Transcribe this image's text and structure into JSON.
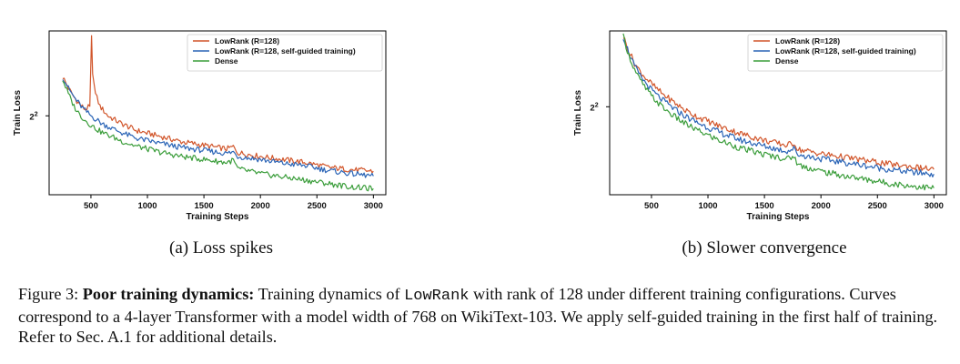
{
  "colors": {
    "lowrank": "#d1552a",
    "lowrank_self_guided": "#2a64b6",
    "dense": "#3a9d3a"
  },
  "panels": [
    {
      "subcaption": "(a) Loss spikes",
      "chart_data": {
        "type": "line",
        "xlabel": "Training Steps",
        "ylabel": "Train Loss",
        "xticks": [
          500,
          1000,
          1500,
          2000,
          2500,
          3000
        ],
        "ytick_label_base": "2",
        "ytick_label_exp": "2",
        "ytick_value": 4,
        "xlim": [
          130,
          3110
        ],
        "ylim": [
          2.95,
          5.55
        ],
        "legend_position": "top-right",
        "series": [
          {
            "name": "LowRank (R=128)",
            "color_key": "lowrank",
            "x": [
              250,
              300,
              350,
              400,
              450,
              490,
              505,
              515,
              540,
              580,
              650,
              750,
              900,
              1100,
              1300,
              1500,
              1700,
              1760,
              1800,
              2000,
              2200,
              2400,
              2600,
              2800,
              3000
            ],
            "y": [
              4.65,
              4.45,
              4.3,
              4.18,
              4.1,
              4.15,
              5.45,
              4.7,
              4.35,
              4.15,
              4.0,
              3.9,
              3.78,
              3.7,
              3.62,
              3.57,
              3.52,
              3.55,
              3.47,
              3.42,
              3.38,
              3.34,
              3.28,
              3.25,
              3.23
            ]
          },
          {
            "name": "LowRank (R=128, self-guided training)",
            "color_key": "lowrank_self_guided",
            "x": [
              250,
              300,
              350,
              400,
              450,
              500,
              550,
              600,
              700,
              800,
              900,
              1100,
              1300,
              1500,
              1700,
              1760,
              1800,
              2000,
              2200,
              2400,
              2600,
              2800,
              3000
            ],
            "y": [
              4.65,
              4.45,
              4.3,
              4.18,
              4.08,
              4.0,
              3.94,
              3.88,
              3.8,
              3.73,
              3.67,
              3.6,
              3.54,
              3.5,
              3.46,
              3.48,
              3.42,
              3.38,
              3.33,
              3.3,
              3.24,
              3.2,
              3.17
            ]
          },
          {
            "name": "Dense",
            "color_key": "dense",
            "x": [
              250,
              300,
              350,
              400,
              450,
              500,
              550,
              600,
              700,
              800,
              900,
              1100,
              1300,
              1500,
              1700,
              1760,
              1800,
              2000,
              2200,
              2400,
              2600,
              2800,
              3000
            ],
            "y": [
              4.6,
              4.35,
              4.15,
              4.02,
              3.93,
              3.86,
              3.8,
              3.75,
              3.68,
              3.61,
              3.56,
              3.48,
              3.42,
              3.38,
              3.34,
              3.37,
              3.26,
              3.2,
              3.16,
              3.12,
              3.08,
              3.04,
              3.02
            ]
          }
        ]
      }
    },
    {
      "subcaption": "(b) Slower convergence",
      "chart_data": {
        "type": "line",
        "xlabel": "Training Steps",
        "ylabel": "Train Loss",
        "xticks": [
          500,
          1000,
          1500,
          2000,
          2500,
          3000
        ],
        "ytick_label_base": "2",
        "ytick_label_exp": "2",
        "ytick_value": 4,
        "xlim": [
          130,
          3110
        ],
        "ylim": [
          2.95,
          5.2
        ],
        "legend_position": "top-right",
        "series": [
          {
            "name": "LowRank (R=128)",
            "color_key": "lowrank",
            "x": [
              250,
              300,
              350,
              400,
              450,
              500,
              550,
              600,
              700,
              800,
              900,
              1100,
              1300,
              1500,
              1700,
              1760,
              1800,
              2000,
              2200,
              2400,
              2600,
              2800,
              3000
            ],
            "y": [
              5.1,
              4.85,
              4.65,
              4.52,
              4.42,
              4.33,
              4.25,
              4.18,
              4.06,
              3.95,
              3.87,
              3.74,
              3.64,
              3.56,
              3.5,
              3.53,
              3.45,
              3.4,
              3.36,
              3.32,
              3.28,
              3.25,
              3.22
            ]
          },
          {
            "name": "LowRank (R=128, self-guided training)",
            "color_key": "lowrank_self_guided",
            "x": [
              250,
              300,
              350,
              400,
              450,
              500,
              550,
              600,
              700,
              800,
              900,
              1100,
              1300,
              1500,
              1700,
              1760,
              1800,
              2000,
              2200,
              2400,
              2600,
              2800,
              3000
            ],
            "y": [
              5.1,
              4.82,
              4.6,
              4.45,
              4.34,
              4.24,
              4.16,
              4.09,
              3.97,
              3.87,
              3.79,
              3.66,
              3.56,
              3.49,
              3.43,
              3.46,
              3.39,
              3.34,
              3.3,
              3.26,
              3.22,
              3.19,
              3.17
            ]
          },
          {
            "name": "Dense",
            "color_key": "dense",
            "x": [
              250,
              300,
              350,
              400,
              450,
              500,
              550,
              600,
              700,
              800,
              900,
              1100,
              1300,
              1500,
              1700,
              1760,
              1800,
              2000,
              2200,
              2400,
              2600,
              2800,
              3000
            ],
            "y": [
              5.1,
              4.78,
              4.55,
              4.38,
              4.26,
              4.15,
              4.07,
              3.99,
              3.87,
              3.77,
              3.69,
              3.56,
              3.46,
              3.39,
              3.34,
              3.37,
              3.27,
              3.2,
              3.15,
              3.11,
              3.07,
              3.04,
              3.02
            ]
          }
        ]
      }
    }
  ],
  "caption": {
    "label": "Figure 3: ",
    "bold_title": "Poor training dynamics:",
    "text_1": " Training dynamics of ",
    "code": "LowRank",
    "text_2": " with rank of 128 under different training configurations. Curves correspond to a 4-layer Transformer with a model width of 768 on WikiText-103. We apply self-guided training in the first half of training. Refer to Sec. A.1 for additional details."
  }
}
